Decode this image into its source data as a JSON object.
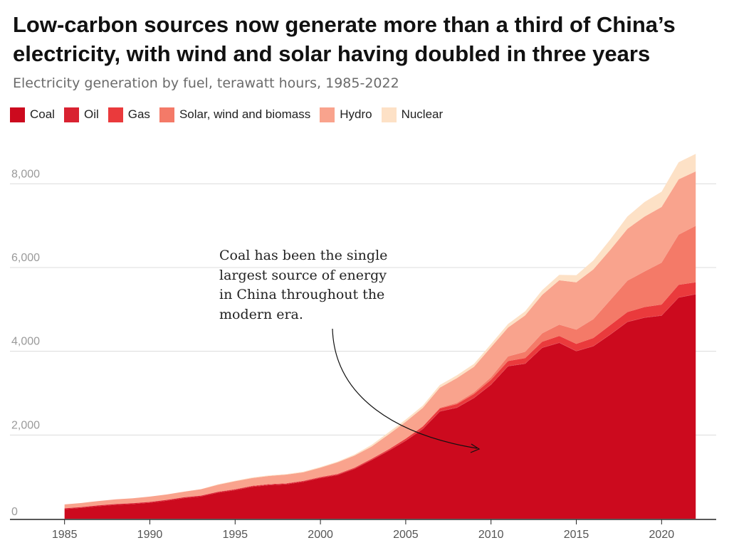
{
  "chart_data": {
    "type": "area",
    "stacked": true,
    "title": "Low-carbon sources now generate more than a third of China’s electricity, with wind and solar having doubled in three years",
    "subtitle": "Electricity generation by fuel, terawatt hours, 1985-2022",
    "x": [
      1985,
      1986,
      1987,
      1988,
      1989,
      1990,
      1991,
      1992,
      1993,
      1994,
      1995,
      1996,
      1997,
      1998,
      1999,
      2000,
      2001,
      2002,
      2003,
      2004,
      2005,
      2006,
      2007,
      2008,
      2009,
      2010,
      2011,
      2012,
      2013,
      2014,
      2015,
      2016,
      2017,
      2018,
      2019,
      2020,
      2021,
      2022
    ],
    "series": [
      {
        "name": "Coal",
        "color": "#cc0a1e",
        "values": [
          230,
          260,
          300,
          330,
          350,
          380,
          430,
          490,
          530,
          620,
          680,
          760,
          800,
          820,
          880,
          970,
          1040,
          1190,
          1400,
          1620,
          1860,
          2140,
          2560,
          2650,
          2880,
          3200,
          3640,
          3700,
          4080,
          4200,
          4000,
          4120,
          4400,
          4700,
          4800,
          4850,
          5280,
          5360
        ]
      },
      {
        "name": "Oil",
        "color": "#d92231",
        "values": [
          18,
          18,
          19,
          20,
          20,
          20,
          20,
          21,
          20,
          20,
          19,
          18,
          18,
          17,
          16,
          14,
          13,
          12,
          11,
          11,
          10,
          10,
          9,
          8,
          8,
          8,
          7,
          7,
          7,
          6,
          6,
          6,
          6,
          6,
          6,
          6,
          6,
          6
        ]
      },
      {
        "name": "Gas",
        "color": "#ea3a3c",
        "values": [
          3,
          3,
          3,
          3,
          3,
          3,
          3,
          4,
          4,
          5,
          6,
          7,
          8,
          9,
          10,
          12,
          15,
          18,
          20,
          25,
          40,
          50,
          65,
          80,
          90,
          110,
          120,
          130,
          140,
          160,
          170,
          190,
          220,
          230,
          250,
          260,
          300,
          280
        ]
      },
      {
        "name": "Solar, wind and biomass",
        "color": "#f47a68",
        "values": [
          1,
          1,
          1,
          1,
          1,
          1,
          1,
          1,
          1,
          1,
          1,
          1,
          1,
          2,
          2,
          3,
          3,
          4,
          6,
          8,
          10,
          12,
          18,
          30,
          40,
          60,
          110,
          150,
          200,
          270,
          340,
          450,
          600,
          750,
          850,
          1000,
          1200,
          1350
        ]
      },
      {
        "name": "Hydro",
        "color": "#f9a38d",
        "values": [
          90,
          95,
          100,
          110,
          115,
          125,
          125,
          130,
          150,
          165,
          190,
          185,
          195,
          205,
          200,
          220,
          275,
          285,
          285,
          350,
          395,
          435,
          480,
          590,
          610,
          720,
          690,
          870,
          920,
          1060,
          1130,
          1190,
          1200,
          1240,
          1310,
          1330,
          1320,
          1300
        ]
      },
      {
        "name": "Nuclear",
        "color": "#fde1c6",
        "values": [
          0,
          0,
          0,
          0,
          0,
          0,
          0,
          1,
          3,
          14,
          12,
          14,
          14,
          14,
          15,
          17,
          18,
          25,
          43,
          50,
          53,
          55,
          62,
          68,
          70,
          74,
          86,
          97,
          112,
          130,
          171,
          213,
          248,
          295,
          348,
          366,
          408,
          418
        ]
      }
    ],
    "xlim": [
      1981.8,
      2023.2
    ],
    "ylim": [
      0,
      9500
    ],
    "x_ticks": [
      "1985",
      "1990",
      "1995",
      "2000",
      "2005",
      "2010",
      "2015",
      "2020"
    ],
    "y_ticks": [
      "0",
      "2,000",
      "4,000",
      "6,000",
      "8,000"
    ],
    "annotation": {
      "lines": [
        "Coal has been the single",
        "largest source of energy",
        "in China throughout the",
        "modern era."
      ]
    },
    "legend_placement": "top-left",
    "grid": true
  }
}
